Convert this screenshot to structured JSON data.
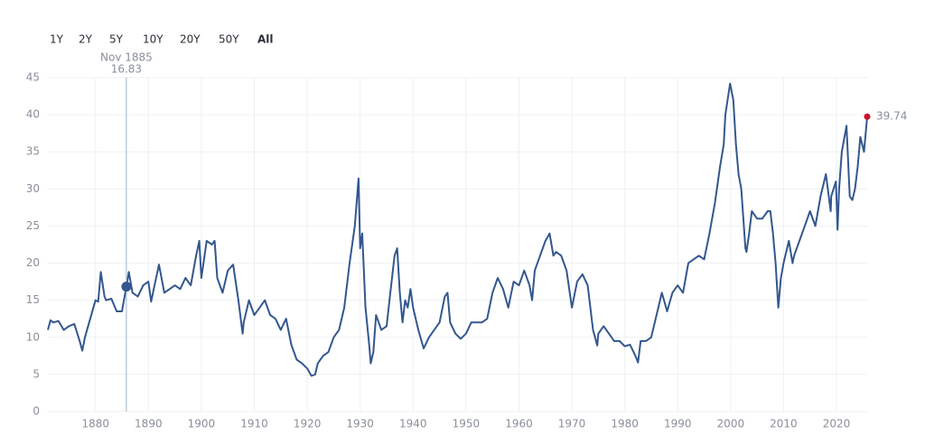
{
  "range_buttons": [
    "1Y",
    "2Y",
    "5Y",
    "10Y",
    "20Y",
    "50Y",
    "All"
  ],
  "selected_range": "All",
  "chart_data": {
    "type": "line",
    "color": "#33578e",
    "last_point_color": "#d0102b",
    "grid": true,
    "xlim": [
      1871,
      2025.8
    ],
    "ylim": [
      0,
      45
    ],
    "xticks": [
      1880,
      1890,
      1900,
      1910,
      1920,
      1930,
      1940,
      1950,
      1960,
      1970,
      1980,
      1990,
      2000,
      2010,
      2020
    ],
    "yticks": [
      0,
      5,
      10,
      15,
      20,
      25,
      30,
      35,
      40,
      45
    ],
    "hover": {
      "label": "Nov 1885",
      "x": 1885.83,
      "value": 16.83
    },
    "x": [
      1871,
      1871.5,
      1872,
      1873,
      1874,
      1875,
      1876,
      1877,
      1877.5,
      1878,
      1879,
      1880,
      1880.5,
      1881,
      1881.7,
      1882,
      1883,
      1884,
      1885,
      1885.83,
      1886,
      1886.3,
      1887,
      1888,
      1889,
      1890,
      1890.5,
      1891,
      1892,
      1893,
      1894,
      1895,
      1896,
      1897,
      1898,
      1899,
      1899.6,
      1900,
      1901,
      1902,
      1902.5,
      1903,
      1904,
      1905,
      1906,
      1907,
      1907.8,
      1908,
      1909,
      1910,
      1911,
      1912,
      1913,
      1914,
      1915,
      1916,
      1917,
      1918,
      1919,
      1920,
      1920.8,
      1921.5,
      1922,
      1923,
      1924,
      1925,
      1926,
      1927,
      1928,
      1929,
      1929.7,
      1930,
      1930.4,
      1931,
      1931.7,
      1932,
      1932.5,
      1933,
      1934,
      1935,
      1935.7,
      1936.5,
      1937,
      1937.5,
      1938,
      1938.5,
      1939,
      1939.5,
      1940,
      1941,
      1942,
      1943,
      1944,
      1945,
      1946,
      1946.5,
      1947,
      1948,
      1949,
      1950,
      1951,
      1952,
      1953,
      1954,
      1955,
      1956,
      1957,
      1958,
      1959,
      1960,
      1961,
      1962,
      1962.5,
      1963,
      1964,
      1965,
      1965.8,
      1966.5,
      1967,
      1968,
      1969,
      1970,
      1971,
      1972,
      1973,
      1974,
      1974.8,
      1975,
      1976,
      1977,
      1978,
      1979,
      1980,
      1981,
      1982,
      1982.5,
      1983,
      1984,
      1985,
      1986,
      1987,
      1987.8,
      1988,
      1989,
      1990,
      1991,
      1992,
      1993,
      1994,
      1995,
      1996,
      1997,
      1998,
      1998.7,
      1999,
      1999.9,
      2000.5,
      2001,
      2001.5,
      2002,
      2002.8,
      2003,
      2003.5,
      2004,
      2005,
      2006,
      2007,
      2007.5,
      2008,
      2008.5,
      2009,
      2009.5,
      2010,
      2011,
      2011.7,
      2012,
      2013,
      2014,
      2015,
      2016,
      2017,
      2018,
      2018.9,
      2019,
      2019.9,
      2020.2,
      2020.5,
      2021,
      2021.9,
      2022.5,
      2023,
      2023.5,
      2024,
      2024.5,
      2025.2,
      2025.8
    ],
    "values": [
      11,
      12.3,
      12,
      12.2,
      11,
      11.5,
      11.8,
      9.5,
      8.2,
      10,
      12.5,
      15,
      14.8,
      18.8,
      15.5,
      15,
      15.2,
      13.5,
      13.5,
      16.83,
      17.5,
      18.8,
      16,
      15.5,
      17,
      17.5,
      14.8,
      16.5,
      19.8,
      16,
      16.5,
      17,
      16.5,
      18,
      17,
      21,
      23,
      18,
      23,
      22.5,
      23,
      18,
      16,
      19,
      19.8,
      15,
      10.5,
      12,
      15,
      13,
      14,
      15,
      13,
      12.5,
      11,
      12.5,
      9,
      7,
      6.5,
      5.8,
      4.8,
      5,
      6.5,
      7.5,
      8,
      10,
      11,
      14,
      20,
      25,
      31.4,
      22,
      24,
      14,
      9,
      6.5,
      8,
      13,
      11,
      11.5,
      16,
      21,
      22,
      16,
      12,
      15,
      14,
      16.5,
      14,
      11,
      8.5,
      10,
      11,
      12,
      15.5,
      16,
      12,
      10.5,
      9.8,
      10.5,
      12,
      12,
      12,
      12.5,
      16,
      18,
      16.5,
      14,
      17.5,
      17,
      19,
      17,
      15,
      19,
      21,
      23,
      24,
      21,
      21.5,
      21,
      19,
      14,
      17.5,
      18.5,
      17,
      11,
      8.9,
      10.5,
      11.5,
      10.5,
      9.5,
      9.5,
      8.8,
      9,
      7.5,
      6.6,
      9.5,
      9.5,
      10,
      13,
      16,
      14,
      13.5,
      16,
      17,
      16,
      20,
      20.5,
      21,
      20.5,
      24,
      28,
      33,
      36,
      40,
      44.2,
      42,
      36,
      32,
      30,
      22,
      21.5,
      24,
      27,
      26,
      26,
      27,
      27,
      24,
      20,
      14,
      18,
      20,
      23,
      20,
      21,
      23,
      25,
      27,
      25,
      29,
      32,
      27,
      29,
      31,
      24.5,
      30,
      35,
      38.5,
      29,
      28.5,
      30,
      33,
      37,
      35,
      39.74
    ]
  }
}
